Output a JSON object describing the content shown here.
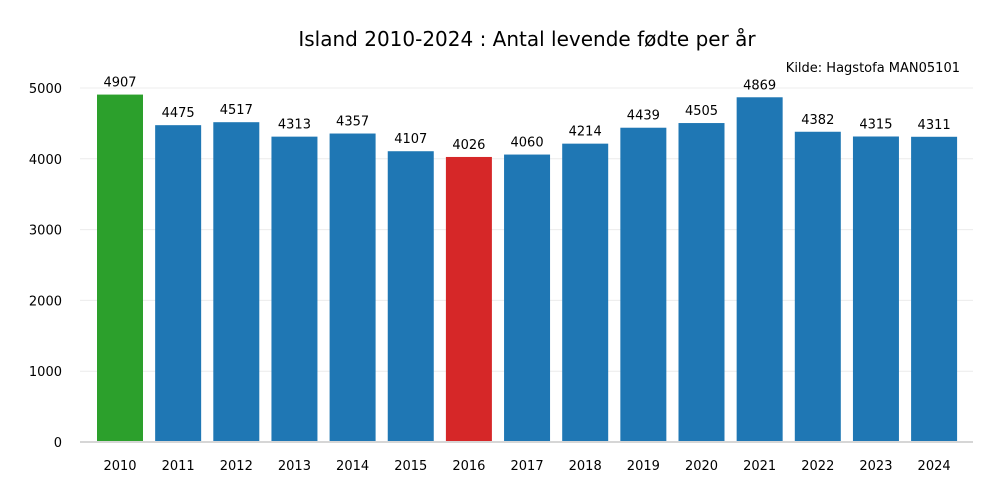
{
  "chart_data": {
    "type": "bar",
    "title": "Island 2010-2024 : Antal levende fødte per år",
    "source": "Kilde: Hagstofa MAN05101",
    "categories": [
      "2010",
      "2011",
      "2012",
      "2013",
      "2014",
      "2015",
      "2016",
      "2017",
      "2018",
      "2019",
      "2020",
      "2021",
      "2022",
      "2023",
      "2024"
    ],
    "values": [
      4907,
      4475,
      4517,
      4313,
      4357,
      4107,
      4026,
      4060,
      4214,
      4439,
      4505,
      4869,
      4382,
      4315,
      4311
    ],
    "bar_colors": [
      "#2ca02c",
      "#1f77b4",
      "#1f77b4",
      "#1f77b4",
      "#1f77b4",
      "#1f77b4",
      "#d62728",
      "#1f77b4",
      "#1f77b4",
      "#1f77b4",
      "#1f77b4",
      "#1f77b4",
      "#1f77b4",
      "#1f77b4",
      "#1f77b4"
    ],
    "ylim": [
      0,
      5000
    ],
    "yticks": [
      0,
      1000,
      2000,
      3000,
      4000,
      5000
    ],
    "grid": true,
    "xlabel": "",
    "ylabel": ""
  }
}
